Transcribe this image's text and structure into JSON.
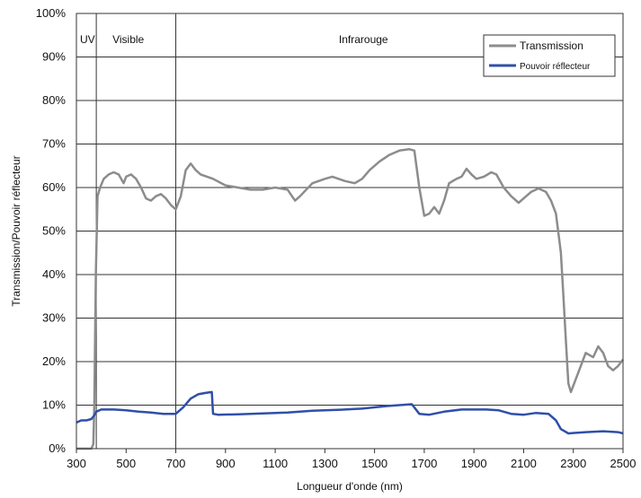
{
  "chart_data": {
    "type": "line",
    "title": "",
    "xlabel": "Longueur d'onde (nm)",
    "ylabel": "Transmission/Pouvoir réflecteur",
    "xlim": [
      300,
      2500
    ],
    "ylim": [
      0,
      100
    ],
    "x_ticks": [
      300,
      500,
      700,
      900,
      1100,
      1300,
      1500,
      1700,
      1900,
      2100,
      2300,
      2500
    ],
    "x_tick_labels": [
      "300",
      "500",
      "700",
      "900",
      "1100",
      "1300",
      "1500",
      "1700",
      "1900",
      "2100",
      "2300",
      "2500"
    ],
    "y_ticks": [
      0,
      10,
      20,
      30,
      40,
      50,
      60,
      70,
      80,
      90,
      100
    ],
    "y_tick_labels": [
      "0%",
      "10%",
      "20%",
      "30%",
      "40%",
      "50%",
      "60%",
      "70%",
      "80%",
      "90%",
      "100%"
    ],
    "grid": "horizontal",
    "legend_position": "top-right",
    "regions": [
      {
        "label": "UV",
        "from": 300,
        "to": 380
      },
      {
        "label": "Visible",
        "from": 380,
        "to": 700
      },
      {
        "label": "Infrarouge",
        "from": 700,
        "to": 2500
      }
    ],
    "series": [
      {
        "name": "Transmission",
        "color": "#8c8c8c",
        "points": [
          [
            300,
            0
          ],
          [
            340,
            0
          ],
          [
            360,
            0
          ],
          [
            368,
            1
          ],
          [
            372,
            10
          ],
          [
            378,
            40
          ],
          [
            385,
            58
          ],
          [
            395,
            60
          ],
          [
            410,
            62
          ],
          [
            430,
            63
          ],
          [
            450,
            63.5
          ],
          [
            470,
            63
          ],
          [
            490,
            61
          ],
          [
            500,
            62.5
          ],
          [
            520,
            63
          ],
          [
            540,
            62
          ],
          [
            560,
            60
          ],
          [
            580,
            57.5
          ],
          [
            600,
            57
          ],
          [
            620,
            58
          ],
          [
            640,
            58.5
          ],
          [
            660,
            57.5
          ],
          [
            680,
            56
          ],
          [
            700,
            55
          ],
          [
            720,
            58
          ],
          [
            740,
            64
          ],
          [
            760,
            65.5
          ],
          [
            780,
            64
          ],
          [
            800,
            63
          ],
          [
            850,
            62
          ],
          [
            900,
            60.5
          ],
          [
            950,
            60
          ],
          [
            1000,
            59.5
          ],
          [
            1050,
            59.5
          ],
          [
            1100,
            60
          ],
          [
            1150,
            59.5
          ],
          [
            1180,
            57
          ],
          [
            1200,
            58
          ],
          [
            1250,
            61
          ],
          [
            1300,
            62
          ],
          [
            1330,
            62.5
          ],
          [
            1380,
            61.5
          ],
          [
            1420,
            61
          ],
          [
            1450,
            62
          ],
          [
            1480,
            64
          ],
          [
            1520,
            66
          ],
          [
            1560,
            67.5
          ],
          [
            1600,
            68.5
          ],
          [
            1640,
            68.8
          ],
          [
            1660,
            68.5
          ],
          [
            1680,
            60
          ],
          [
            1700,
            53.5
          ],
          [
            1720,
            54
          ],
          [
            1740,
            55.5
          ],
          [
            1760,
            54
          ],
          [
            1780,
            57
          ],
          [
            1800,
            61
          ],
          [
            1830,
            62
          ],
          [
            1850,
            62.5
          ],
          [
            1870,
            64.3
          ],
          [
            1890,
            63
          ],
          [
            1910,
            62
          ],
          [
            1940,
            62.5
          ],
          [
            1970,
            63.5
          ],
          [
            1990,
            63
          ],
          [
            2020,
            60
          ],
          [
            2050,
            58
          ],
          [
            2080,
            56.5
          ],
          [
            2100,
            57.5
          ],
          [
            2130,
            59
          ],
          [
            2160,
            59.8
          ],
          [
            2190,
            59
          ],
          [
            2210,
            57
          ],
          [
            2230,
            54
          ],
          [
            2250,
            45
          ],
          [
            2260,
            35
          ],
          [
            2270,
            25
          ],
          [
            2280,
            15
          ],
          [
            2290,
            13
          ],
          [
            2310,
            16
          ],
          [
            2330,
            19
          ],
          [
            2350,
            22
          ],
          [
            2380,
            21
          ],
          [
            2400,
            23.5
          ],
          [
            2420,
            22
          ],
          [
            2440,
            19
          ],
          [
            2460,
            18
          ],
          [
            2480,
            19
          ],
          [
            2500,
            20.5
          ]
        ]
      },
      {
        "name": "Pouvoir réflecteur",
        "color": "#2f4fa8",
        "points": [
          [
            300,
            6
          ],
          [
            320,
            6.5
          ],
          [
            340,
            6.5
          ],
          [
            360,
            6.8
          ],
          [
            370,
            7.5
          ],
          [
            380,
            8.5
          ],
          [
            400,
            9
          ],
          [
            450,
            9
          ],
          [
            500,
            8.8
          ],
          [
            550,
            8.5
          ],
          [
            600,
            8.3
          ],
          [
            650,
            8
          ],
          [
            700,
            8
          ],
          [
            730,
            9.5
          ],
          [
            760,
            11.5
          ],
          [
            790,
            12.5
          ],
          [
            820,
            12.8
          ],
          [
            845,
            13
          ],
          [
            850,
            8
          ],
          [
            870,
            7.8
          ],
          [
            950,
            7.9
          ],
          [
            1050,
            8.1
          ],
          [
            1150,
            8.3
          ],
          [
            1250,
            8.7
          ],
          [
            1350,
            8.9
          ],
          [
            1450,
            9.2
          ],
          [
            1550,
            9.8
          ],
          [
            1650,
            10.2
          ],
          [
            1680,
            8
          ],
          [
            1720,
            7.8
          ],
          [
            1780,
            8.5
          ],
          [
            1850,
            9
          ],
          [
            1950,
            9
          ],
          [
            2000,
            8.8
          ],
          [
            2050,
            8
          ],
          [
            2100,
            7.8
          ],
          [
            2150,
            8.2
          ],
          [
            2200,
            8
          ],
          [
            2230,
            6.5
          ],
          [
            2250,
            4.5
          ],
          [
            2280,
            3.5
          ],
          [
            2350,
            3.8
          ],
          [
            2420,
            4
          ],
          [
            2480,
            3.8
          ],
          [
            2500,
            3.5
          ]
        ]
      }
    ]
  }
}
